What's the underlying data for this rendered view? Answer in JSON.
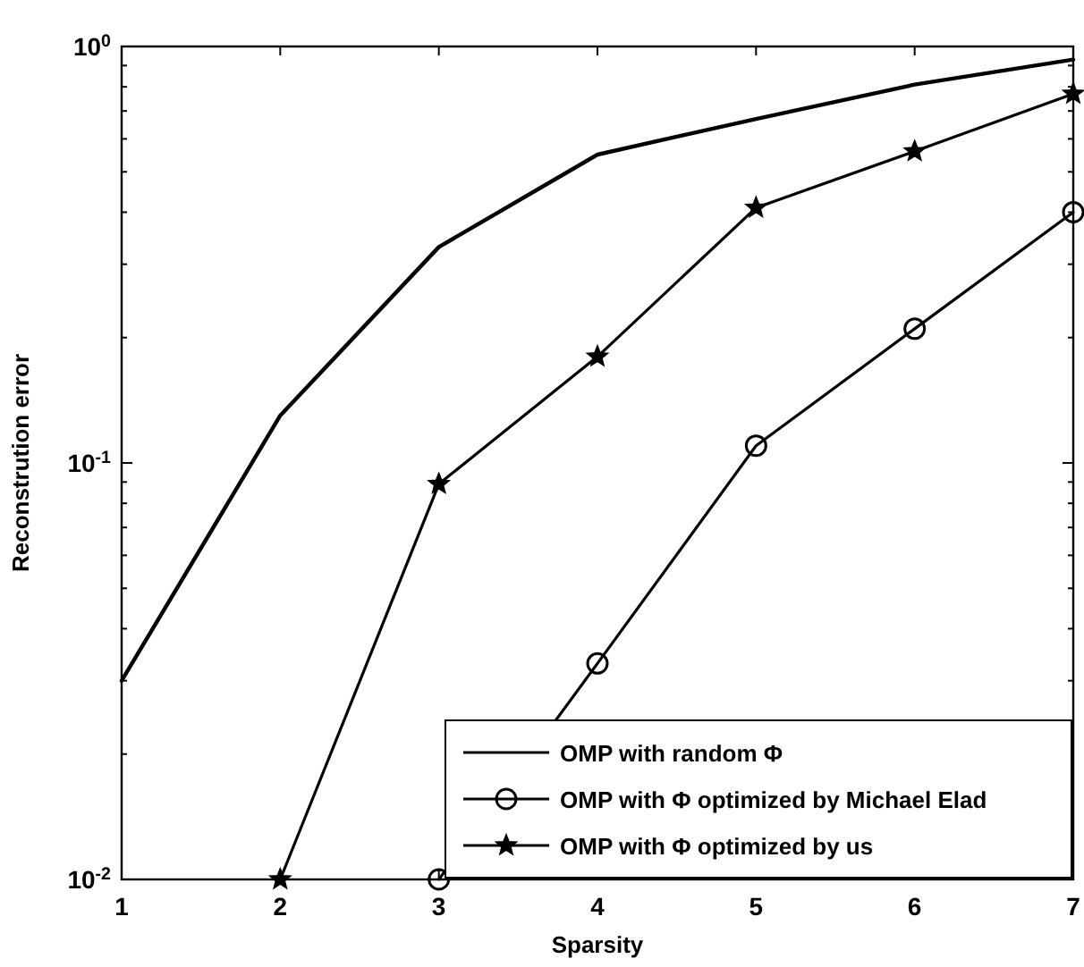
{
  "chart_data": {
    "type": "line",
    "xlabel": "Sparsity",
    "ylabel": "Reconstrution error",
    "log": "y",
    "x": [
      1,
      2,
      3,
      4,
      5,
      6,
      7
    ],
    "xlim": [
      1,
      7
    ],
    "xticks": [
      1,
      2,
      3,
      4,
      5,
      6,
      7
    ],
    "ylim": [
      0.01,
      1
    ],
    "yticks": [
      {
        "value": 0.01,
        "label": "10$^{-2}$"
      },
      {
        "value": 0.02,
        "label": null
      },
      {
        "value": 0.03,
        "label": null
      },
      {
        "value": 0.04,
        "label": null
      },
      {
        "value": 0.05,
        "label": null
      },
      {
        "value": 0.06,
        "label": null
      },
      {
        "value": 0.07,
        "label": null
      },
      {
        "value": 0.08,
        "label": null
      },
      {
        "value": 0.09,
        "label": null
      },
      {
        "value": 0.1,
        "label": "10$^{-1}$"
      },
      {
        "value": 0.2,
        "label": null
      },
      {
        "value": 0.3,
        "label": null
      },
      {
        "value": 0.4,
        "label": null
      },
      {
        "value": 0.5,
        "label": null
      },
      {
        "value": 0.6,
        "label": null
      },
      {
        "value": 0.7,
        "label": null
      },
      {
        "value": 0.8,
        "label": null
      },
      {
        "value": 0.9,
        "label": null
      },
      {
        "value": 1,
        "label": "10$^{0}$"
      }
    ],
    "grid": false,
    "legend": "bottom right",
    "series": [
      {
        "name": "OMP with random Φ",
        "color": "#000000",
        "marker": "none",
        "values": [
          0.03,
          0.13,
          0.33,
          0.55,
          0.67,
          0.81,
          0.93
        ]
      },
      {
        "name": "OMP with Φ optimized by Michael Elad",
        "color": "#000000",
        "marker": "circle",
        "values": [
          null,
          null,
          0.01,
          0.033,
          0.11,
          0.21,
          0.4
        ]
      },
      {
        "name": "OMP with Φ optimized by us",
        "color": "#000000",
        "marker": "star",
        "values": [
          null,
          0.01,
          0.089,
          0.18,
          0.41,
          0.56,
          0.77
        ]
      }
    ]
  }
}
